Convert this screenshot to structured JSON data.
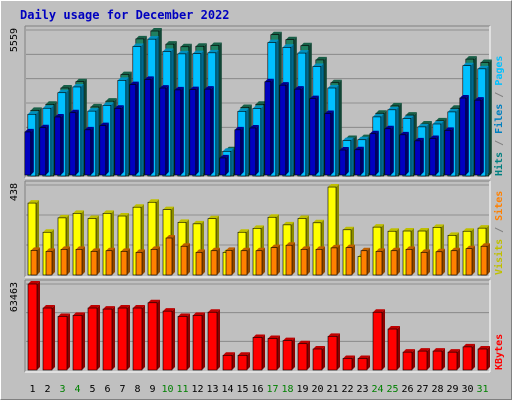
{
  "page": {
    "title": "Daily usage for December 2022"
  },
  "chart_data": [
    {
      "type": "bar",
      "panel": "hits-files-pages",
      "categories": [
        "1",
        "2",
        "3",
        "4",
        "5",
        "6",
        "7",
        "8",
        "9",
        "10",
        "11",
        "12",
        "13",
        "14",
        "15",
        "16",
        "17",
        "18",
        "19",
        "20",
        "21",
        "22",
        "23",
        "24",
        "25",
        "26",
        "27",
        "28",
        "29",
        "30",
        "31"
      ],
      "weekend_days": [
        "3",
        "4",
        "10",
        "11",
        "17",
        "18",
        "24",
        "25",
        "31"
      ],
      "ymax_label": "5559",
      "ylim": [
        0,
        5559
      ],
      "right_label_parts": [
        {
          "text": "Hits",
          "color": "#008080"
        },
        {
          "text": " / ",
          "color": "#808080"
        },
        {
          "text": "Files",
          "color": "#0080c0"
        },
        {
          "text": " / ",
          "color": "#808080"
        },
        {
          "text": "Pages",
          "color": "#00c0ff"
        }
      ],
      "series": [
        {
          "name": "Hits",
          "color": "#208060",
          "values": [
            2500,
            2730,
            3350,
            3590,
            2630,
            2850,
            3860,
            5220,
            5520,
            5020,
            4920,
            4940,
            4970,
            1000,
            2610,
            2730,
            5380,
            5190,
            4960,
            4420,
            3550,
            1430,
            1460,
            2390,
            2670,
            2320,
            1980,
            2100,
            2580,
            4450,
            4320
          ]
        },
        {
          "name": "Files",
          "color": "#00c0ff",
          "values": [
            2350,
            2580,
            3170,
            3390,
            2470,
            2690,
            3640,
            4930,
            5210,
            4740,
            4650,
            4660,
            4690,
            940,
            2460,
            2570,
            5080,
            4900,
            4680,
            4170,
            3350,
            1350,
            1380,
            2250,
            2520,
            2190,
            1870,
            1980,
            2440,
            4200,
            4080
          ]
        },
        {
          "name": "Pages",
          "color": "#0000c0",
          "values": [
            1640,
            1800,
            2210,
            2370,
            1720,
            1880,
            2540,
            3440,
            3640,
            3310,
            3240,
            3250,
            3270,
            650,
            1720,
            1790,
            3550,
            3420,
            3270,
            2910,
            2340,
            950,
            960,
            1570,
            1760,
            1530,
            1300,
            1390,
            1700,
            2930,
            2850
          ]
        }
      ]
    },
    {
      "type": "bar",
      "panel": "visits-sites",
      "categories": [
        "1",
        "2",
        "3",
        "4",
        "5",
        "6",
        "7",
        "8",
        "9",
        "10",
        "11",
        "12",
        "13",
        "14",
        "15",
        "16",
        "17",
        "18",
        "19",
        "20",
        "21",
        "22",
        "23",
        "24",
        "25",
        "26",
        "27",
        "28",
        "29",
        "30",
        "31"
      ],
      "ymax_label": "438",
      "ylim": [
        0,
        438
      ],
      "right_label_parts": [
        {
          "text": "Visits",
          "color": "#c0c000"
        },
        {
          "text": " / ",
          "color": "#808080"
        },
        {
          "text": "Sites",
          "color": "#ff8000"
        }
      ],
      "series": [
        {
          "name": "Visits",
          "color": "#ffff00",
          "values": [
            350,
            208,
            278,
            300,
            275,
            300,
            287,
            330,
            354,
            318,
            256,
            249,
            274,
            110,
            208,
            227,
            281,
            244,
            275,
            254,
            428,
            220,
            90,
            233,
            213,
            214,
            214,
            232,
            193,
            213,
            228
          ]
        },
        {
          "name": "Sites",
          "color": "#ff8000",
          "values": [
            120,
            115,
            125,
            125,
            115,
            118,
            115,
            110,
            125,
            180,
            140,
            110,
            118,
            120,
            118,
            118,
            133,
            145,
            125,
            125,
            132,
            133,
            118,
            115,
            118,
            125,
            110,
            113,
            118,
            128,
            140
          ]
        }
      ]
    },
    {
      "type": "bar",
      "panel": "kbytes",
      "categories": [
        "1",
        "2",
        "3",
        "4",
        "5",
        "6",
        "7",
        "8",
        "9",
        "10",
        "11",
        "12",
        "13",
        "14",
        "15",
        "16",
        "17",
        "18",
        "19",
        "20",
        "21",
        "22",
        "23",
        "24",
        "25",
        "26",
        "27",
        "28",
        "29",
        "30",
        "31"
      ],
      "ymax_label": "63463",
      "ylim": [
        0,
        63463
      ],
      "right_label_parts": [
        {
          "text": "KBytes",
          "color": "#ff0000"
        }
      ],
      "series": [
        {
          "name": "KBytes",
          "color": "#ff0000",
          "values": [
            63463,
            45720,
            39520,
            40290,
            45720,
            44960,
            45720,
            45720,
            49600,
            43420,
            39520,
            40300,
            42640,
            10850,
            10850,
            24020,
            23250,
            21700,
            19380,
            15500,
            24800,
            8530,
            8530,
            42630,
            30230,
            13170,
            13950,
            13950,
            13170,
            17050,
            15500
          ]
        }
      ]
    }
  ]
}
